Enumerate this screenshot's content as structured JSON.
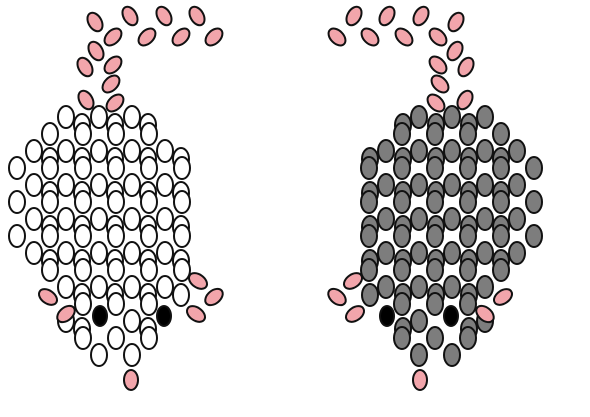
{
  "colors": {
    "background": "#ffffff",
    "bead_stroke": "#111111",
    "white_body": "#ffffff",
    "grey_body": "#7d7d7d",
    "pink_accent": "#f2a5ab",
    "eye": "#000000"
  },
  "patterns": [
    {
      "id": "mouse-pattern-white",
      "body_color_key": "white_body",
      "mirrored": false
    },
    {
      "id": "mouse-pattern-grey",
      "body_color_key": "grey_body",
      "mirrored": true
    }
  ]
}
